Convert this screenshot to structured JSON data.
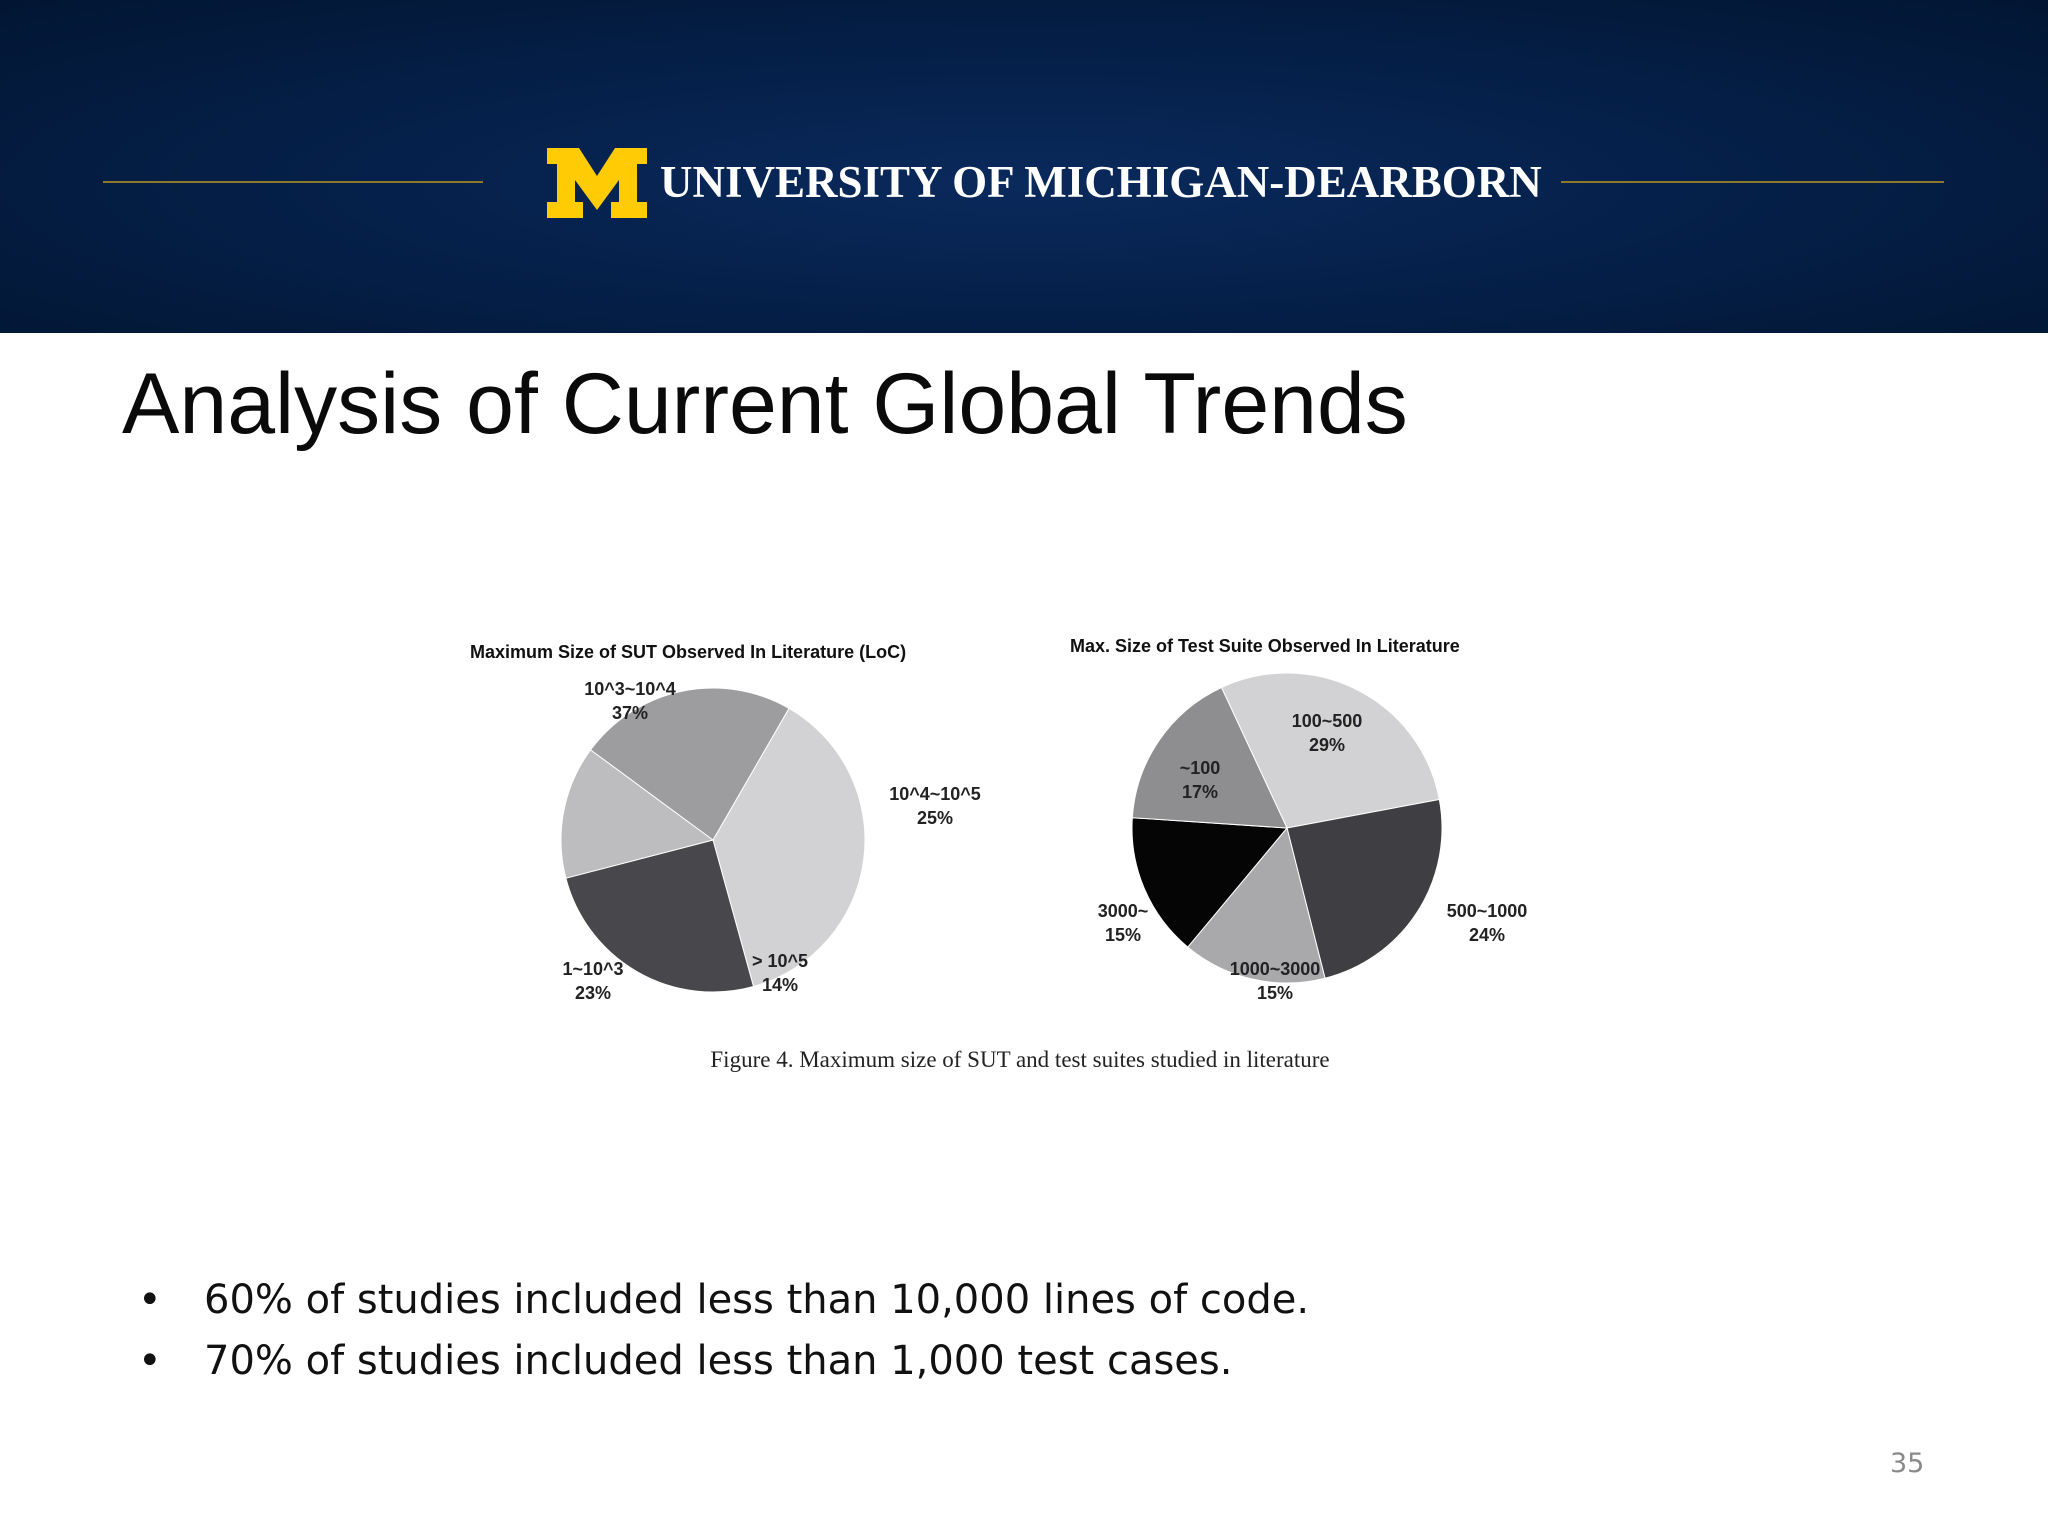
{
  "header": {
    "university_name": "UNIVERSITY OF MICHIGAN-DEARBORN",
    "logo_letter": "M",
    "colors": {
      "band": "#05204a",
      "maize": "#ffcb05",
      "rule": "#8c7a2c"
    }
  },
  "slide": {
    "title": "Analysis of Current Global Trends",
    "page_number": "35"
  },
  "figure": {
    "caption": "Figure 4. Maximum size of SUT and test suites studied in literature"
  },
  "chart_data": [
    {
      "type": "pie",
      "title": "Maximum Size of SUT Observed In Literature (LoC)",
      "slices": [
        {
          "label": "10^3~10^4",
          "value": 37,
          "value_label": "37%",
          "color": "#d2d2d4"
        },
        {
          "label": "10^4~10^5",
          "value": 25,
          "value_label": "25%",
          "color": "#48484c"
        },
        {
          "label": "> 10^5",
          "value": 14,
          "value_label": "14%",
          "color": "#bdbdbf"
        },
        {
          "label": "1~10^3",
          "value": 23,
          "value_label": "23%",
          "color": "#9d9da0"
        }
      ]
    },
    {
      "type": "pie",
      "title": "Max. Size of Test Suite Observed In Literature",
      "slices": [
        {
          "label": "100~500",
          "value": 29,
          "value_label": "29%",
          "color": "#d2d2d4"
        },
        {
          "label": "500~1000",
          "value": 24,
          "value_label": "24%",
          "color": "#3f3f43"
        },
        {
          "label": "1000~3000",
          "value": 15,
          "value_label": "15%",
          "color": "#a9a9ac"
        },
        {
          "label": "3000~",
          "value": 15,
          "value_label": "15%",
          "color": "#050505"
        },
        {
          "label": "~100",
          "value": 17,
          "value_label": "17%",
          "color": "#8e8e91"
        }
      ]
    }
  ],
  "bullets": [
    {
      "symbol": "•",
      "text": "60% of studies included less than 10,000 lines of code."
    },
    {
      "symbol": "•",
      "text": "70% of studies included less than 1,000 test cases."
    }
  ]
}
